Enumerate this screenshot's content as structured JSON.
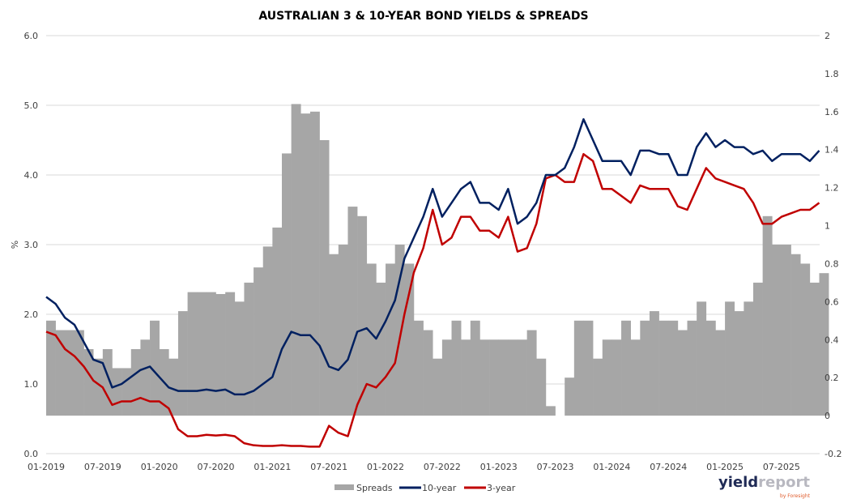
{
  "chart_data": {
    "type": "line+bar",
    "title": "AUSTRALIAN 3 & 10-YEAR BOND YIELDS & SPREADS",
    "ylabel": "%",
    "ylim": [
      0,
      6
    ],
    "y2lim": [
      -0.2,
      2
    ],
    "yticks": [
      "0.0",
      "1.0",
      "2.0",
      "3.0",
      "4.0",
      "5.0",
      "6.0"
    ],
    "y2ticks": [
      "-0.2",
      "0",
      "0.2",
      "0.4",
      "0.6",
      "0.8",
      "1",
      "1.2",
      "1.4",
      "1.6",
      "1.8",
      "2"
    ],
    "xticks": [
      "01-2019",
      "07-2019",
      "01-2020",
      "07-2020",
      "01-2021",
      "07-2021",
      "01-2022",
      "07-2022",
      "01-2023",
      "07-2023",
      "01-2024",
      "07-2024",
      "01-2025",
      "07-2025"
    ],
    "x_start": "01-2019",
    "x_end": "11-2025",
    "grid": true,
    "legend_position": "bottom",
    "series": [
      {
        "name": "Spreads",
        "type": "bar",
        "axis": "right",
        "color": "#A6A6A6"
      },
      {
        "name": "10-year",
        "type": "line",
        "axis": "left",
        "color": "#002060",
        "values": [
          2.25,
          2.15,
          1.95,
          1.85,
          1.6,
          1.35,
          1.3,
          0.95,
          1.0,
          1.1,
          1.2,
          1.25,
          1.1,
          0.95,
          0.9,
          0.9,
          0.9,
          0.92,
          0.9,
          0.92,
          0.85,
          0.85,
          0.9,
          1.0,
          1.1,
          1.5,
          1.75,
          1.7,
          1.7,
          1.55,
          1.25,
          1.2,
          1.35,
          1.75,
          1.8,
          1.65,
          1.9,
          2.2,
          2.8,
          3.1,
          3.4,
          3.8,
          3.4,
          3.6,
          3.8,
          3.9,
          3.6,
          3.6,
          3.5,
          3.8,
          3.3,
          3.4,
          3.6,
          4.0,
          4.0,
          4.1,
          4.4,
          4.8,
          4.5,
          4.2,
          4.2,
          4.2,
          4.0,
          4.35,
          4.35,
          4.3,
          4.3,
          4.0,
          4.0,
          4.4,
          4.6,
          4.4,
          4.5,
          4.4,
          4.4,
          4.3,
          4.35,
          4.2,
          4.3,
          4.3,
          4.3,
          4.2,
          4.35
        ]
      },
      {
        "name": "3-year",
        "type": "line",
        "axis": "left",
        "color": "#C00000",
        "values": [
          1.75,
          1.7,
          1.5,
          1.4,
          1.25,
          1.05,
          0.95,
          0.7,
          0.75,
          0.75,
          0.8,
          0.75,
          0.75,
          0.65,
          0.35,
          0.25,
          0.25,
          0.27,
          0.26,
          0.27,
          0.25,
          0.15,
          0.12,
          0.11,
          0.11,
          0.12,
          0.11,
          0.11,
          0.1,
          0.1,
          0.4,
          0.3,
          0.25,
          0.7,
          1.0,
          0.95,
          1.1,
          1.3,
          2.0,
          2.6,
          2.95,
          3.5,
          3.0,
          3.1,
          3.4,
          3.4,
          3.2,
          3.2,
          3.1,
          3.4,
          2.9,
          2.95,
          3.3,
          3.95,
          4.0,
          3.9,
          3.9,
          4.3,
          4.2,
          3.8,
          3.8,
          3.7,
          3.6,
          3.85,
          3.8,
          3.8,
          3.8,
          3.55,
          3.5,
          3.8,
          4.1,
          3.95,
          3.9,
          3.85,
          3.8,
          3.6,
          3.3,
          3.3,
          3.4,
          3.45,
          3.5,
          3.5,
          3.6
        ]
      }
    ]
  },
  "logo": {
    "part1": "yield",
    "part2": "report",
    "byline": "by Foresight"
  }
}
